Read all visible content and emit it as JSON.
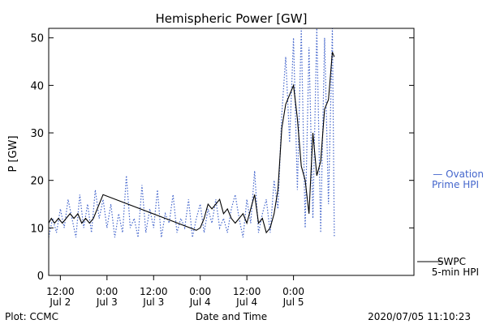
{
  "chart_data": {
    "type": "line",
    "title": "Hemispheric Power [GW]",
    "ylabel": "P [GW]",
    "xlabel": "Date and Time",
    "ylim": [
      0,
      52
    ],
    "yticks": [
      0,
      10,
      20,
      30,
      40,
      50
    ],
    "xlim": [
      "2020-07-02T09:00",
      "2020-07-06T07:00"
    ],
    "xticks": [
      {
        "x": "2020-07-02T12:00",
        "time": "12:00",
        "date": "Jul 2"
      },
      {
        "x": "2020-07-03T00:00",
        "time": "0:00",
        "date": "Jul 3"
      },
      {
        "x": "2020-07-03T12:00",
        "time": "12:00",
        "date": "Jul 3"
      },
      {
        "x": "2020-07-04T00:00",
        "time": "0:00",
        "date": "Jul 4"
      },
      {
        "x": "2020-07-04T12:00",
        "time": "12:00",
        "date": "Jul 4"
      },
      {
        "x": "2020-07-05T00:00",
        "time": "0:00",
        "date": "Jul 5"
      }
    ],
    "series": [
      {
        "name": "SWPC 5-min HPI",
        "color": "#000000",
        "style": "solid",
        "points": [
          [
            "2020-07-02T09:00",
            11
          ],
          [
            "2020-07-02T09:40",
            12
          ],
          [
            "2020-07-02T10:30",
            11
          ],
          [
            "2020-07-02T11:30",
            12
          ],
          [
            "2020-07-02T12:30",
            11
          ],
          [
            "2020-07-02T13:30",
            12
          ],
          [
            "2020-07-02T14:30",
            13
          ],
          [
            "2020-07-02T15:30",
            12
          ],
          [
            "2020-07-02T16:30",
            13
          ],
          [
            "2020-07-02T17:30",
            11
          ],
          [
            "2020-07-02T18:30",
            12
          ],
          [
            "2020-07-02T19:30",
            11
          ],
          [
            "2020-07-02T20:30",
            12
          ],
          [
            "2020-07-02T21:30",
            14
          ],
          [
            "2020-07-02T22:30",
            16
          ],
          [
            "2020-07-02T23:00",
            17
          ],
          [
            "2020-07-03T23:00",
            9.5
          ],
          [
            "2020-07-04T00:00",
            10
          ],
          [
            "2020-07-04T01:00",
            12
          ],
          [
            "2020-07-04T02:00",
            15
          ],
          [
            "2020-07-04T03:00",
            14
          ],
          [
            "2020-07-04T04:00",
            15
          ],
          [
            "2020-07-04T05:00",
            16
          ],
          [
            "2020-07-04T06:00",
            13
          ],
          [
            "2020-07-04T07:00",
            14
          ],
          [
            "2020-07-04T08:00",
            12
          ],
          [
            "2020-07-04T09:00",
            11
          ],
          [
            "2020-07-04T10:00",
            12
          ],
          [
            "2020-07-04T11:00",
            13
          ],
          [
            "2020-07-04T12:00",
            11
          ],
          [
            "2020-07-04T13:00",
            14
          ],
          [
            "2020-07-04T14:00",
            17
          ],
          [
            "2020-07-04T15:00",
            11
          ],
          [
            "2020-07-04T16:00",
            12
          ],
          [
            "2020-07-04T17:00",
            9
          ],
          [
            "2020-07-04T18:00",
            10
          ],
          [
            "2020-07-04T19:00",
            13
          ],
          [
            "2020-07-04T20:00",
            18
          ],
          [
            "2020-07-04T21:00",
            31
          ],
          [
            "2020-07-04T22:00",
            36
          ],
          [
            "2020-07-04T23:00",
            38
          ],
          [
            "2020-07-05T00:00",
            40
          ],
          [
            "2020-07-05T01:00",
            33
          ],
          [
            "2020-07-05T02:00",
            23
          ],
          [
            "2020-07-05T03:00",
            20
          ],
          [
            "2020-07-05T04:00",
            13
          ],
          [
            "2020-07-05T05:00",
            30
          ],
          [
            "2020-07-05T06:00",
            21
          ],
          [
            "2020-07-05T07:00",
            24
          ],
          [
            "2020-07-05T08:00",
            35
          ],
          [
            "2020-07-05T09:00",
            37
          ],
          [
            "2020-07-05T10:00",
            47
          ],
          [
            "2020-07-05T10:30",
            46
          ]
        ]
      },
      {
        "name": "Ovation Prime HPI",
        "color": "#4466cc",
        "style": "dotted",
        "points": [
          [
            "2020-07-02T09:00",
            8
          ],
          [
            "2020-07-02T10:00",
            12
          ],
          [
            "2020-07-02T11:00",
            9
          ],
          [
            "2020-07-02T12:00",
            14
          ],
          [
            "2020-07-02T13:00",
            10
          ],
          [
            "2020-07-02T14:00",
            16
          ],
          [
            "2020-07-02T15:00",
            12
          ],
          [
            "2020-07-02T16:00",
            8
          ],
          [
            "2020-07-02T17:00",
            17
          ],
          [
            "2020-07-02T18:00",
            10
          ],
          [
            "2020-07-02T19:00",
            15
          ],
          [
            "2020-07-02T20:00",
            9
          ],
          [
            "2020-07-02T21:00",
            18
          ],
          [
            "2020-07-02T22:00",
            12
          ],
          [
            "2020-07-02T23:00",
            16
          ],
          [
            "2020-07-03T00:00",
            10
          ],
          [
            "2020-07-03T01:00",
            15
          ],
          [
            "2020-07-03T02:00",
            8
          ],
          [
            "2020-07-03T03:00",
            13
          ],
          [
            "2020-07-03T04:00",
            9
          ],
          [
            "2020-07-03T05:00",
            21
          ],
          [
            "2020-07-03T06:00",
            10
          ],
          [
            "2020-07-03T07:00",
            12
          ],
          [
            "2020-07-03T08:00",
            8
          ],
          [
            "2020-07-03T09:00",
            19
          ],
          [
            "2020-07-03T10:00",
            9
          ],
          [
            "2020-07-03T11:00",
            14
          ],
          [
            "2020-07-03T12:00",
            10
          ],
          [
            "2020-07-03T13:00",
            18
          ],
          [
            "2020-07-03T14:00",
            8
          ],
          [
            "2020-07-03T15:00",
            13
          ],
          [
            "2020-07-03T16:00",
            11
          ],
          [
            "2020-07-03T17:00",
            17
          ],
          [
            "2020-07-03T18:00",
            9
          ],
          [
            "2020-07-03T19:00",
            12
          ],
          [
            "2020-07-03T20:00",
            10
          ],
          [
            "2020-07-03T21:00",
            16
          ],
          [
            "2020-07-03T22:00",
            8
          ],
          [
            "2020-07-03T23:00",
            12
          ],
          [
            "2020-07-04T00:00",
            15
          ],
          [
            "2020-07-04T01:00",
            9
          ],
          [
            "2020-07-04T02:00",
            14
          ],
          [
            "2020-07-04T03:00",
            11
          ],
          [
            "2020-07-04T04:00",
            16
          ],
          [
            "2020-07-04T05:00",
            10
          ],
          [
            "2020-07-04T06:00",
            12
          ],
          [
            "2020-07-04T07:00",
            9
          ],
          [
            "2020-07-04T08:00",
            14
          ],
          [
            "2020-07-04T09:00",
            17
          ],
          [
            "2020-07-04T10:00",
            12
          ],
          [
            "2020-07-04T11:00",
            8
          ],
          [
            "2020-07-04T12:00",
            16
          ],
          [
            "2020-07-04T13:00",
            11
          ],
          [
            "2020-07-04T14:00",
            22
          ],
          [
            "2020-07-04T15:00",
            9
          ],
          [
            "2020-07-04T16:00",
            13
          ],
          [
            "2020-07-04T17:00",
            16
          ],
          [
            "2020-07-04T18:00",
            9
          ],
          [
            "2020-07-04T19:00",
            20
          ],
          [
            "2020-07-04T20:00",
            14
          ],
          [
            "2020-07-04T21:00",
            34
          ],
          [
            "2020-07-04T22:00",
            46
          ],
          [
            "2020-07-04T23:00",
            28
          ],
          [
            "2020-07-05T00:00",
            50
          ],
          [
            "2020-07-05T01:00",
            18
          ],
          [
            "2020-07-05T02:00",
            52
          ],
          [
            "2020-07-05T03:00",
            10
          ],
          [
            "2020-07-05T04:00",
            48
          ],
          [
            "2020-07-05T05:00",
            12
          ],
          [
            "2020-07-05T06:00",
            52
          ],
          [
            "2020-07-05T07:00",
            9
          ],
          [
            "2020-07-05T08:00",
            50
          ],
          [
            "2020-07-05T09:00",
            15
          ],
          [
            "2020-07-05T10:00",
            52
          ],
          [
            "2020-07-05T10:30",
            8
          ]
        ]
      }
    ],
    "legend": {
      "position": "right",
      "items": [
        {
          "lines": [
            "— Ovation",
            "Prime HPI"
          ],
          "color": "#4466cc"
        },
        {
          "lines": [
            "SWPC",
            "5-min HPI"
          ],
          "color": "#000000"
        }
      ]
    },
    "footer": {
      "left": "Plot: CCMC",
      "right": "2020/07/05 11:10:23"
    }
  }
}
